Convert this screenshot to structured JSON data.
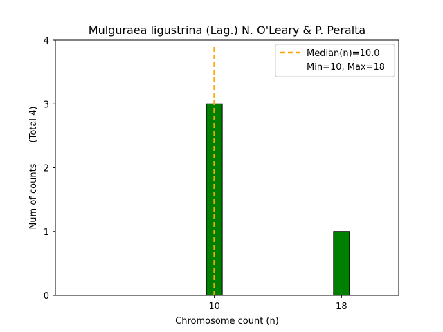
{
  "chart_data": {
    "type": "bar",
    "title": "Mulguraea ligustrina (Lag.) N. O'Leary & P. Peralta",
    "xlabel": "Chromosome count (n)",
    "ylabel": "Num of counts",
    "ylabel_note": "(Total 4)",
    "xlim": [
      0,
      21.6
    ],
    "ylim": [
      0,
      4
    ],
    "x_ticks": [
      10,
      18
    ],
    "y_ticks": [
      0,
      1,
      2,
      3,
      4
    ],
    "bar_width": 1,
    "bar_color": "#008000",
    "bar_edge_color": "#000000",
    "bars": [
      {
        "x": 10,
        "count": 3
      },
      {
        "x": 18,
        "count": 1
      }
    ],
    "median": {
      "value": 10.0,
      "color": "#FFA500"
    },
    "legend": {
      "position": "top-right",
      "entries": [
        "Median(n)=10.0",
        "Min=10, Max=18"
      ]
    },
    "grid": false
  }
}
